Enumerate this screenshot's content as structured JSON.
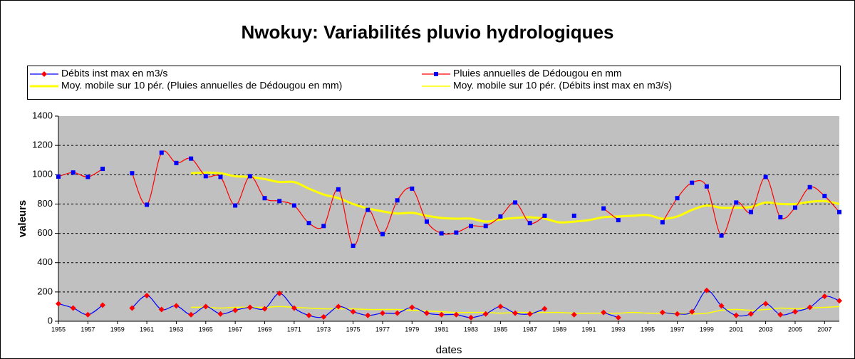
{
  "chart_data": {
    "type": "line",
    "title": "Nwokuy: Variabilités  pluvio hydrologiques",
    "x_label": "dates",
    "y_label": "valeurs",
    "x": [
      1955,
      1956,
      1957,
      1958,
      1959,
      1960,
      1961,
      1962,
      1963,
      1964,
      1965,
      1966,
      1967,
      1968,
      1969,
      1970,
      1971,
      1972,
      1973,
      1974,
      1975,
      1976,
      1977,
      1978,
      1979,
      1980,
      1981,
      1982,
      1983,
      1984,
      1985,
      1986,
      1987,
      1988,
      1989,
      1990,
      1991,
      1992,
      1993,
      1994,
      1995,
      1996,
      1997,
      1998,
      1999,
      2000,
      2001,
      2002,
      2003,
      2004,
      2005,
      2006,
      2007,
      2008
    ],
    "xlim": [
      1955,
      2008
    ],
    "xticks": [
      1955,
      1957,
      1959,
      1961,
      1963,
      1965,
      1967,
      1969,
      1971,
      1973,
      1975,
      1977,
      1979,
      1981,
      1983,
      1985,
      1987,
      1989,
      1991,
      1993,
      1995,
      1997,
      1999,
      2001,
      2003,
      2005,
      2007
    ],
    "ylim": [
      0,
      1400
    ],
    "yticks": [
      0,
      200,
      400,
      600,
      800,
      1000,
      1200,
      1400
    ],
    "grid": true,
    "smooth": true,
    "series": [
      {
        "name": "Débits inst max en m3/s",
        "color": "#0000ff",
        "marker": "diamond",
        "marker_color": "#ff0000",
        "values": [
          120,
          90,
          45,
          110,
          null,
          90,
          175,
          80,
          105,
          45,
          100,
          50,
          75,
          95,
          85,
          190,
          90,
          40,
          30,
          100,
          65,
          40,
          55,
          55,
          95,
          55,
          45,
          45,
          25,
          50,
          100,
          55,
          50,
          85,
          null,
          45,
          null,
          60,
          25,
          null,
          null,
          60,
          50,
          65,
          210,
          105,
          40,
          50,
          120,
          45,
          65,
          95,
          170,
          140
        ]
      },
      {
        "name": "Pluies annuelles de Dédougou en mm",
        "color": "#ff0000",
        "marker": "square",
        "marker_color": "#0000ff",
        "values": [
          987,
          1015,
          985,
          1040,
          null,
          1010,
          795,
          1150,
          1080,
          1110,
          990,
          985,
          790,
          990,
          840,
          820,
          790,
          670,
          650,
          900,
          515,
          760,
          595,
          825,
          905,
          680,
          600,
          605,
          650,
          650,
          715,
          810,
          670,
          720,
          null,
          720,
          null,
          770,
          690,
          null,
          null,
          675,
          840,
          945,
          920,
          585,
          810,
          745,
          985,
          710,
          775,
          915,
          855,
          745
        ]
      },
      {
        "name": "Moy. mobile sur 10 pér. (Pluies annuelles de Dédougou en mm)",
        "color": "#ffff00",
        "line_width": 3,
        "values": [
          null,
          null,
          null,
          null,
          null,
          null,
          null,
          null,
          null,
          1010,
          1015,
          1010,
          990,
          985,
          970,
          950,
          950,
          905,
          865,
          840,
          800,
          770,
          750,
          735,
          740,
          720,
          705,
          700,
          700,
          680,
          695,
          705,
          710,
          700,
          675,
          680,
          690,
          710,
          715,
          720,
          725,
          700,
          715,
          760,
          790,
          775,
          775,
          780,
          810,
          800,
          800,
          815,
          820,
          800
        ]
      },
      {
        "name": "Moy. mobile sur 10 pér. (Débits inst max en m3/s)",
        "color": "#ffff00",
        "line_width": 1.5,
        "values": [
          null,
          null,
          null,
          null,
          null,
          null,
          null,
          null,
          null,
          95,
          95,
          90,
          95,
          95,
          95,
          100,
          95,
          90,
          85,
          85,
          85,
          80,
          80,
          80,
          75,
          70,
          65,
          60,
          60,
          60,
          55,
          60,
          60,
          60,
          60,
          55,
          55,
          55,
          55,
          60,
          55,
          55,
          55,
          50,
          55,
          75,
          80,
          75,
          80,
          90,
          85,
          90,
          95,
          100
        ]
      }
    ]
  }
}
